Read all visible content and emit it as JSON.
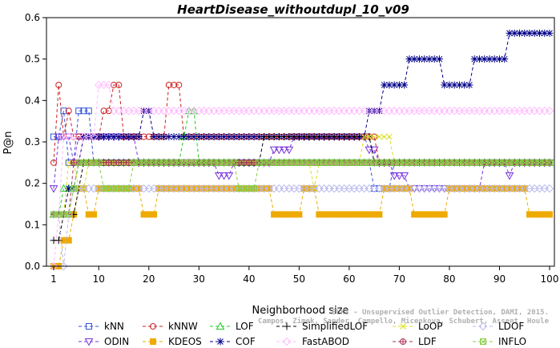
{
  "chart_data": {
    "type": "line",
    "title": "HeartDisease_withoutdupl_10_v09",
    "xlabel": "Neighborhood size",
    "ylabel": "P@n",
    "xlim": [
      1,
      100
    ],
    "ylim": [
      0,
      0.6
    ],
    "xticks": [
      "1",
      "10",
      "20",
      "30",
      "40",
      "50",
      "60",
      "70",
      "80",
      "90",
      "100"
    ],
    "yticks": [
      "0.0",
      "0.1",
      "0.2",
      "0.3",
      "0.4",
      "0.5",
      "0.6"
    ],
    "grid": false,
    "legend_position": "bottom",
    "watermark_line1": "ELKI - Unsupervised Outlier Detection, DAMI, 2015.",
    "watermark_line2": "Campos, Zimek, Sander, Campello, Micenkova, Schubert, Assent, Houle",
    "series": [
      {
        "name": "kNN",
        "color": "#3355dd",
        "marker": "square",
        "segments": [
          [
            1,
            0.3125
          ],
          [
            2,
            0.3125
          ],
          [
            3,
            0.375
          ],
          [
            4,
            0.25
          ],
          [
            5,
            0.25
          ],
          [
            6,
            0.375
          ],
          [
            8,
            0.375
          ],
          [
            9,
            0.25
          ],
          [
            64,
            0.25
          ],
          [
            65,
            0.1875
          ],
          [
            68,
            0.1875
          ],
          [
            69,
            0.25
          ],
          [
            100,
            0.25
          ]
        ]
      },
      {
        "name": "ODIN",
        "color": "#7733dd",
        "marker": "triangle-down",
        "segments": [
          [
            1,
            0.1875
          ],
          [
            2,
            0.3125
          ],
          [
            3,
            0.3125
          ],
          [
            5,
            0.25
          ],
          [
            6,
            0.3125
          ],
          [
            9,
            0.3125
          ],
          [
            10,
            0.3125
          ],
          [
            11,
            0.3125
          ],
          [
            14,
            0.3125
          ],
          [
            17,
            0.3125
          ],
          [
            18,
            0.25
          ],
          [
            22,
            0.25
          ],
          [
            30,
            0.25
          ],
          [
            33,
            0.25
          ],
          [
            34,
            0.21875
          ],
          [
            36,
            0.21875
          ],
          [
            37,
            0.25
          ],
          [
            40,
            0.25
          ],
          [
            44,
            0.25
          ],
          [
            45,
            0.28125
          ],
          [
            47,
            0.28125
          ],
          [
            48,
            0.28125
          ],
          [
            49,
            0.3125
          ],
          [
            63,
            0.3125
          ],
          [
            64,
            0.28125
          ],
          [
            66,
            0.25
          ],
          [
            68,
            0.25
          ],
          [
            69,
            0.21875
          ],
          [
            71,
            0.21875
          ],
          [
            72,
            0.1875
          ],
          [
            86,
            0.1875
          ],
          [
            87,
            0.25
          ],
          [
            91,
            0.25
          ],
          [
            92,
            0.21875
          ],
          [
            93,
            0.25
          ],
          [
            100,
            0.25
          ]
        ]
      },
      {
        "name": "kNNW",
        "color": "#cc2222",
        "marker": "circle",
        "segments": [
          [
            1,
            0.25
          ],
          [
            2,
            0.4375
          ],
          [
            3,
            0.3125
          ],
          [
            4,
            0.375
          ],
          [
            5,
            0.3125
          ],
          [
            10,
            0.3125
          ],
          [
            11,
            0.375
          ],
          [
            12,
            0.375
          ],
          [
            13,
            0.4375
          ],
          [
            14,
            0.4375
          ],
          [
            15,
            0.3125
          ],
          [
            23,
            0.3125
          ],
          [
            24,
            0.4375
          ],
          [
            26,
            0.4375
          ],
          [
            27,
            0.3125
          ],
          [
            65,
            0.3125
          ],
          [
            66,
            0.25
          ],
          [
            100,
            0.25
          ]
        ]
      },
      {
        "name": "KDEOS",
        "color": "#eeaa00",
        "marker": "square-filled",
        "segments": [
          [
            1,
            0.0
          ],
          [
            2,
            0.0
          ],
          [
            3,
            0.0625
          ],
          [
            4,
            0.0625
          ],
          [
            5,
            0.125
          ],
          [
            6,
            0.1875
          ],
          [
            8,
            0.125
          ],
          [
            9,
            0.125
          ],
          [
            10,
            0.1875
          ],
          [
            18,
            0.1875
          ],
          [
            19,
            0.125
          ],
          [
            21,
            0.125
          ],
          [
            22,
            0.1875
          ],
          [
            44,
            0.1875
          ],
          [
            45,
            0.125
          ],
          [
            50,
            0.125
          ],
          [
            51,
            0.1875
          ],
          [
            53,
            0.1875
          ],
          [
            54,
            0.125
          ],
          [
            66,
            0.125
          ],
          [
            67,
            0.1875
          ],
          [
            72,
            0.1875
          ],
          [
            73,
            0.125
          ],
          [
            79,
            0.125
          ],
          [
            80,
            0.1875
          ],
          [
            95,
            0.1875
          ],
          [
            96,
            0.125
          ],
          [
            100,
            0.125
          ]
        ]
      },
      {
        "name": "LOF",
        "color": "#22cc22",
        "marker": "triangle-up",
        "segments": [
          [
            1,
            0.125
          ],
          [
            2,
            0.125
          ],
          [
            3,
            0.1875
          ],
          [
            5,
            0.1875
          ],
          [
            6,
            0.25
          ],
          [
            26,
            0.25
          ],
          [
            27,
            0.3125
          ],
          [
            28,
            0.375
          ],
          [
            29,
            0.375
          ],
          [
            30,
            0.25
          ],
          [
            100,
            0.25
          ]
        ]
      },
      {
        "name": "COF",
        "color": "#000088",
        "marker": "asterisk",
        "segments": [
          [
            1,
            0.125
          ],
          [
            3,
            0.125
          ],
          [
            4,
            0.1875
          ],
          [
            5,
            0.1875
          ],
          [
            6,
            0.25
          ],
          [
            7,
            0.3125
          ],
          [
            18,
            0.3125
          ],
          [
            19,
            0.375
          ],
          [
            20,
            0.375
          ],
          [
            21,
            0.3125
          ],
          [
            63,
            0.3125
          ],
          [
            64,
            0.375
          ],
          [
            66,
            0.375
          ],
          [
            67,
            0.4375
          ],
          [
            71,
            0.4375
          ],
          [
            72,
            0.5
          ],
          [
            78,
            0.5
          ],
          [
            79,
            0.4375
          ],
          [
            84,
            0.4375
          ],
          [
            85,
            0.5
          ],
          [
            91,
            0.5
          ],
          [
            92,
            0.5625
          ],
          [
            100,
            0.5625
          ]
        ]
      },
      {
        "name": "SimplifiedLOF",
        "color": "#000000",
        "marker": "plus",
        "segments": [
          [
            1,
            0.0625
          ],
          [
            2,
            0.0625
          ],
          [
            3,
            0.125
          ],
          [
            5,
            0.125
          ],
          [
            6,
            0.1875
          ],
          [
            7,
            0.25
          ],
          [
            42,
            0.25
          ],
          [
            43,
            0.3125
          ],
          [
            64,
            0.3125
          ],
          [
            65,
            0.25
          ],
          [
            100,
            0.25
          ]
        ]
      },
      {
        "name": "FastABOD",
        "color": "#ffbbff",
        "marker": "diamond",
        "segments": [
          [
            1,
            0.0
          ],
          [
            2,
            0.125
          ],
          [
            3,
            0.3125
          ],
          [
            5,
            0.3125
          ],
          [
            6,
            0.25
          ],
          [
            7,
            0.3125
          ],
          [
            9,
            0.3125
          ],
          [
            10,
            0.4375
          ],
          [
            12,
            0.4375
          ],
          [
            13,
            0.375
          ],
          [
            100,
            0.375
          ]
        ]
      },
      {
        "name": "LoOP",
        "color": "#dddd22",
        "marker": "cross",
        "segments": [
          [
            1,
            0.125
          ],
          [
            3,
            0.125
          ],
          [
            4,
            0.25
          ],
          [
            5,
            0.25
          ],
          [
            6,
            0.1875
          ],
          [
            8,
            0.25
          ],
          [
            52,
            0.25
          ],
          [
            53,
            0.1875
          ],
          [
            54,
            0.25
          ],
          [
            62,
            0.25
          ],
          [
            63,
            0.3125
          ],
          [
            68,
            0.3125
          ],
          [
            69,
            0.25
          ],
          [
            100,
            0.25
          ]
        ]
      },
      {
        "name": "LDF",
        "color": "#aa3355",
        "marker": "circle-cross",
        "segments": [
          [
            1,
            0.125
          ],
          [
            4,
            0.125
          ],
          [
            5,
            0.25
          ],
          [
            100,
            0.25
          ]
        ]
      },
      {
        "name": "LDOF",
        "color": "#bbbbee",
        "marker": "diamond-open",
        "segments": [
          [
            1,
            0.125
          ],
          [
            2,
            0.125
          ],
          [
            3,
            0.0
          ],
          [
            4,
            0.125
          ],
          [
            5,
            0.1875
          ],
          [
            60,
            0.1875
          ],
          [
            61,
            0.1875
          ],
          [
            100,
            0.1875
          ]
        ]
      },
      {
        "name": "INFLO",
        "color": "#88cc44",
        "marker": "square-cross",
        "segments": [
          [
            1,
            0.125
          ],
          [
            4,
            0.125
          ],
          [
            5,
            0.1875
          ],
          [
            6,
            0.25
          ],
          [
            10,
            0.25
          ],
          [
            11,
            0.1875
          ],
          [
            16,
            0.1875
          ],
          [
            17,
            0.25
          ],
          [
            37,
            0.25
          ],
          [
            38,
            0.1875
          ],
          [
            41,
            0.1875
          ],
          [
            42,
            0.25
          ],
          [
            100,
            0.25
          ]
        ]
      }
    ]
  }
}
